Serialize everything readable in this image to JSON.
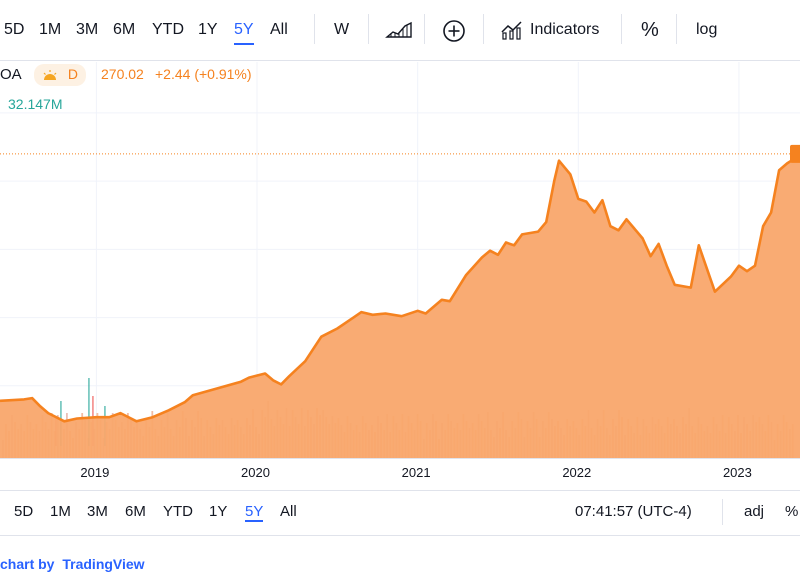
{
  "toolbar": {
    "ranges": [
      "5D",
      "1M",
      "3M",
      "6M",
      "YTD",
      "1Y",
      "5Y",
      "All"
    ],
    "active_range": "5Y",
    "interval": "W",
    "indicators_label": "Indicators",
    "percent_label": "%",
    "log_label": "log"
  },
  "legend": {
    "symbol_fragment": "OA",
    "interval_badge": "D",
    "price": "270.02",
    "change": "+2.44 (+0.91%)",
    "volume": "32.147M"
  },
  "bottombar": {
    "ranges": [
      "5D",
      "1M",
      "3M",
      "6M",
      "YTD",
      "1Y",
      "5Y",
      "All"
    ],
    "active_range": "5Y",
    "time": "07:41:57 (UTC-4)",
    "adj_label": "adj",
    "percent_label": "%"
  },
  "footer": {
    "prefix": "chart by",
    "brand": "TradingView"
  },
  "colors": {
    "line": "#f5821f",
    "area_fill": "#f9a66c",
    "accent": "#2962ff",
    "volume_up": "#26a69a",
    "volume_down": "#ef5350"
  },
  "chart_data": {
    "type": "area",
    "xlabel": "",
    "ylabel": "",
    "x_tick_labels": [
      "2019",
      "2020",
      "2021",
      "2022",
      "2023"
    ],
    "x_tick_values": [
      2019.0,
      2020.0,
      2021.0,
      2022.0,
      2023.0
    ],
    "xlim": [
      2018.4,
      2023.38
    ],
    "ylim": [
      50,
      330
    ],
    "last_price": 270.02,
    "series": [
      {
        "x": [
          2018.4,
          2018.55,
          2018.6,
          2018.65,
          2018.7,
          2018.8,
          2018.88,
          2019.0,
          2019.08,
          2019.15,
          2019.25,
          2019.35,
          2019.45,
          2019.55,
          2019.6,
          2019.75,
          2019.9,
          2019.95,
          2020.05,
          2020.1,
          2020.15,
          2020.2,
          2020.3,
          2020.4,
          2020.5,
          2020.6,
          2020.65,
          2020.72,
          2020.8,
          2020.9,
          2021.0,
          2021.05,
          2021.15,
          2021.2,
          2021.3,
          2021.4,
          2021.45,
          2021.5,
          2021.55,
          2021.6,
          2021.65,
          2021.75,
          2021.8,
          2021.85,
          2021.88,
          2021.95,
          2022.0,
          2022.05,
          2022.1,
          2022.15,
          2022.2,
          2022.25,
          2022.3,
          2022.4,
          2022.45,
          2022.5,
          2022.55,
          2022.6,
          2022.7,
          2022.75,
          2022.85,
          2022.95,
          2023.0,
          2023.05,
          2023.1,
          2023.15,
          2023.2,
          2023.25,
          2023.3,
          2023.38
        ],
        "values": [
          89,
          90,
          91,
          85,
          80,
          74,
          76,
          77,
          77,
          80,
          74,
          77,
          82,
          88,
          93,
          98,
          103,
          106,
          109,
          104,
          101,
          107,
          118,
          136,
          142,
          150,
          154,
          152,
          153,
          151,
          155,
          153,
          163,
          162,
          181,
          194,
          199,
          196,
          205,
          203,
          211,
          213,
          220,
          250,
          265,
          255,
          237,
          235,
          227,
          236,
          217,
          214,
          222,
          208,
          195,
          204,
          188,
          174,
          172,
          203,
          169,
          180,
          188,
          184,
          188,
          217,
          227,
          258,
          263,
          269
        ]
      }
    ]
  }
}
